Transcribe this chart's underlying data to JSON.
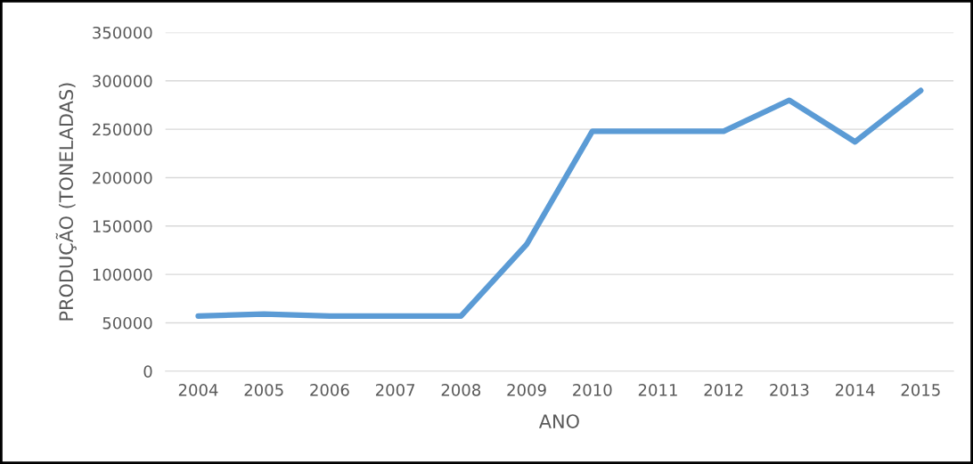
{
  "chart_data": {
    "type": "line",
    "xlabel": "ANO",
    "ylabel": "PRODUÇÃO (TONELADAS)",
    "categories": [
      "2004",
      "2005",
      "2006",
      "2007",
      "2008",
      "2009",
      "2010",
      "2011",
      "2012",
      "2013",
      "2014",
      "2015"
    ],
    "series": [
      {
        "color": "#5b9bd5",
        "values": [
          57000,
          59000,
          57000,
          57000,
          57000,
          131000,
          248000,
          248000,
          248000,
          280000,
          237000,
          290000
        ]
      }
    ],
    "ylim": [
      0,
      350000
    ],
    "yticks": [
      0,
      50000,
      100000,
      150000,
      200000,
      250000,
      300000,
      350000
    ],
    "grid": "y",
    "marker": "none",
    "line_style": "solid"
  }
}
